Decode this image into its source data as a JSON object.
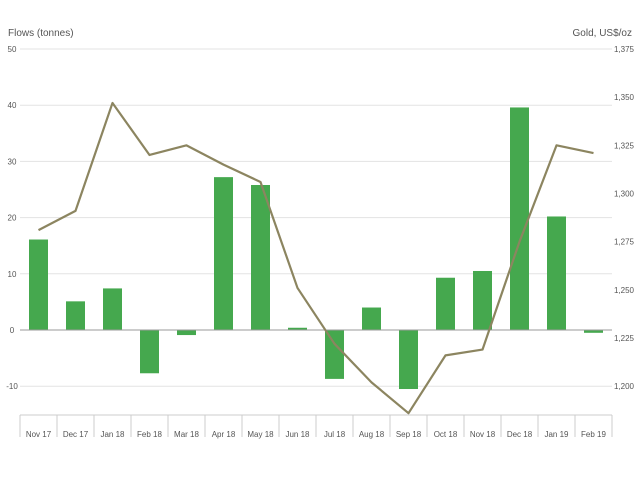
{
  "chart_data": {
    "type": "bar",
    "categories": [
      "Nov 17",
      "Dec 17",
      "Jan 18",
      "Feb 18",
      "Mar 18",
      "Apr 18",
      "May 18",
      "Jun 18",
      "Jul 18",
      "Aug 18",
      "Sep 18",
      "Oct 18",
      "Nov 18",
      "Dec 18",
      "Jan 19",
      "Feb 19"
    ],
    "series": [
      {
        "type": "bar",
        "axis": "left",
        "color": "#45a84e",
        "values": [
          16.1,
          5.1,
          7.4,
          -7.7,
          -0.9,
          27.2,
          25.8,
          0.4,
          -8.7,
          4.0,
          -10.5,
          9.3,
          10.5,
          39.6,
          20.2,
          -0.5
        ]
      },
      {
        "type": "line",
        "axis": "right",
        "color": "#8c8560",
        "values": [
          1281,
          1291,
          1347,
          1320,
          1325,
          1315,
          1306,
          1251,
          1222,
          1202,
          1186,
          1216,
          1219,
          1275,
          1325,
          1321
        ]
      }
    ],
    "left_axis": {
      "label": "Flows (tonnes)",
      "range": [
        -15,
        50
      ],
      "ticks": [
        50,
        40,
        30,
        20,
        10,
        0,
        -10
      ],
      "tick_labels": [
        "50",
        "40",
        "30",
        "20",
        "10",
        "0",
        "-10"
      ]
    },
    "right_axis": {
      "label": "Gold, US$/oz",
      "ticks": [
        1375,
        1350,
        1325,
        1300,
        1275,
        1250,
        1225,
        1200
      ],
      "tick_labels": [
        "1,375",
        "1,350",
        "1,325",
        "1,300",
        "1,275",
        "1,250",
        "1,225",
        "1,200"
      ]
    },
    "grid": true,
    "legend": "none"
  }
}
